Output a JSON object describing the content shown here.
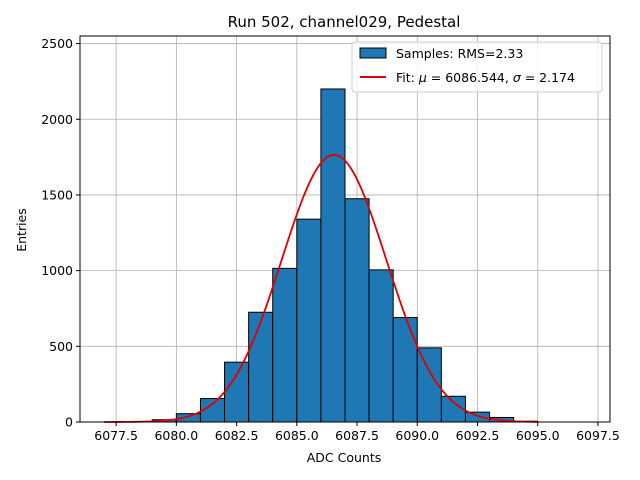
{
  "chart_data": {
    "type": "bar",
    "title": "Run 502, channel029, Pedestal",
    "xlabel": "ADC Counts",
    "ylabel": "Entries",
    "xlim": [
      6076.0,
      6098.0
    ],
    "ylim": [
      0,
      2550
    ],
    "grid": true,
    "legend_position": "top-right",
    "x_ticks": [
      6077.5,
      6080.0,
      6082.5,
      6085.0,
      6087.5,
      6090.0,
      6092.5,
      6095.0,
      6097.5
    ],
    "x_tick_labels": [
      "6077.5",
      "6080.0",
      "6082.5",
      "6085.0",
      "6087.5",
      "6090.0",
      "6092.5",
      "6095.0",
      "6097.5"
    ],
    "y_ticks": [
      0,
      500,
      1000,
      1500,
      2000,
      2500
    ],
    "y_tick_labels": [
      "0",
      "500",
      "1000",
      "1500",
      "2000",
      "2500"
    ],
    "histogram": {
      "name": "Samples: RMS=2.33",
      "color": "#1f77b4",
      "edge_color": "#000000",
      "bin_edges": [
        6078,
        6079,
        6080,
        6081,
        6082,
        6083,
        6084,
        6085,
        6086,
        6087,
        6088,
        6089,
        6090,
        6091,
        6092,
        6093,
        6094,
        6095
      ],
      "counts": [
        3,
        15,
        55,
        155,
        395,
        725,
        1015,
        1340,
        2200,
        1475,
        1005,
        690,
        490,
        170,
        65,
        30,
        5
      ]
    },
    "fit": {
      "name_prefix": "Fit: ",
      "mu_symbol": "μ",
      "mu_value": " = 6086.544, ",
      "sigma_symbol": "σ",
      "sigma_value": " = 2.174",
      "mu": 6086.544,
      "sigma": 2.174,
      "amplitude": 1765,
      "x_range": [
        6077,
        6095
      ],
      "color": "#e00000"
    }
  }
}
